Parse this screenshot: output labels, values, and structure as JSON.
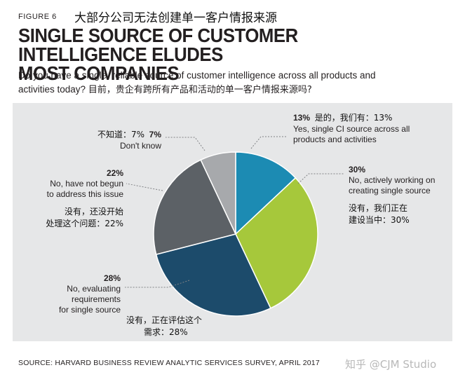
{
  "figure_label": "FIGURE 6",
  "figure_title_zh": "大部分公司无法创建单一客户情报来源",
  "title_line1": "SINGLE SOURCE OF CUSTOMER INTELLIGENCE ELUDES",
  "title_line2": "MOST COMPANIES",
  "question_en_1": "Do you have a single, reliable source of customer intelligence across all products and",
  "question_en_2": "activities today?",
  "question_zh": "目前，贵企有跨所有产品和活动的单一客户情报来源吗?",
  "source": "SOURCE: HARVARD BUSINESS REVIEW ANALYTIC SERVICES SURVEY, APRIL 2017",
  "watermark": "知乎 @CJM Studio",
  "labels": {
    "yes": {
      "pct": "13%",
      "zh": "是的，我们有：13%",
      "en1": "Yes, single CI source across all",
      "en2": "products and activities"
    },
    "working": {
      "pct": "30%",
      "en1": "No, actively working on",
      "en2": "creating single source",
      "zh1": "没有，我们正在",
      "zh2": "建设当中：30%"
    },
    "evaluating": {
      "pct": "28%",
      "en1": "No, evaluating",
      "en2": "requirements",
      "en3": "for single source",
      "zh1": "没有，正在评估这个",
      "zh2": "需求：28%"
    },
    "notbegun": {
      "pct": "22%",
      "en1": "No, have not begun",
      "en2": "to address this issue",
      "zh1": "没有，还没开始",
      "zh2": "处理这个问题：22%"
    },
    "dontknow": {
      "pct": "7%",
      "zh": "不知道：7%",
      "en": "Don't know"
    }
  },
  "chart_data": {
    "type": "pie",
    "categories": [
      "Yes, single CI source across all products and activities",
      "No, actively working on creating single source",
      "No, evaluating requirements for single source",
      "No, have not begun to address this issue",
      "Don't know"
    ],
    "values": [
      13,
      30,
      28,
      22,
      7
    ],
    "colors": [
      "#1c8bb3",
      "#a6c83b",
      "#1c4b6b",
      "#5c6166",
      "#a7a9ac"
    ],
    "start": "12 o'clock",
    "direction": "clockwise"
  }
}
